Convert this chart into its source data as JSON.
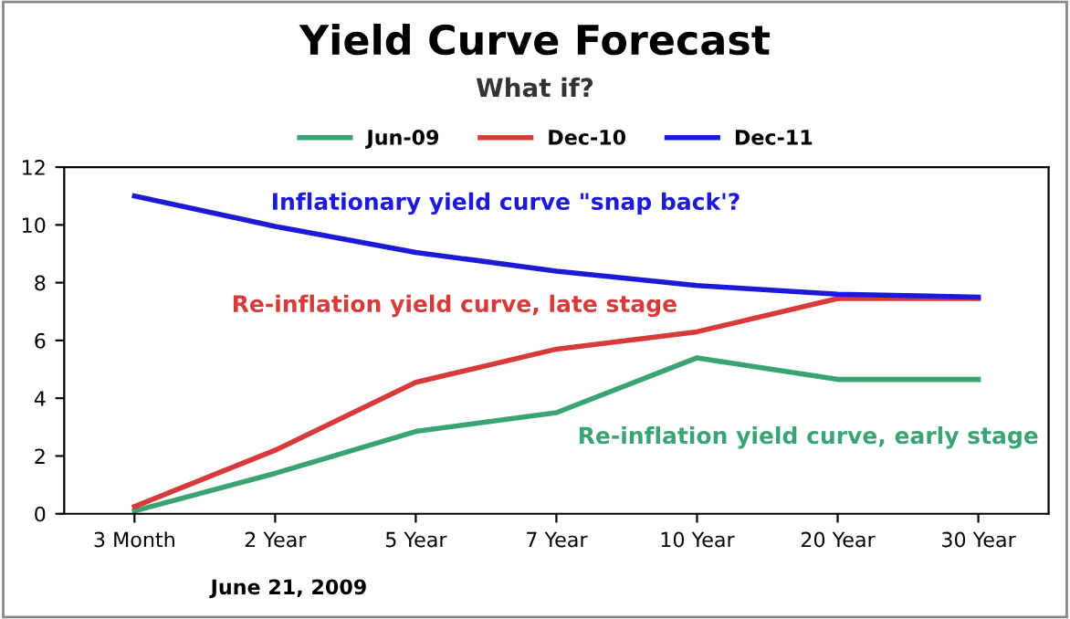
{
  "chart_data": {
    "type": "line",
    "title": "Yield Curve Forecast",
    "subtitle": "What if?",
    "categories": [
      "3 Month",
      "2 Year",
      "5 Year",
      "7 Year",
      "10 Year",
      "20 Year",
      "30 Year"
    ],
    "series": [
      {
        "name": "Jun-09",
        "color": "#3aa374",
        "values": [
          0.1,
          1.4,
          2.85,
          3.5,
          5.4,
          4.65,
          4.65
        ]
      },
      {
        "name": "Dec-10",
        "color": "#d83a3a",
        "values": [
          0.25,
          2.2,
          4.55,
          5.7,
          6.3,
          7.45,
          7.45
        ]
      },
      {
        "name": "Dec-11",
        "color": "#1a1ad8",
        "values": [
          11.0,
          9.95,
          9.05,
          8.4,
          7.9,
          7.6,
          7.5
        ]
      }
    ],
    "ylim": [
      0,
      12
    ],
    "yticks": [
      0,
      2,
      4,
      6,
      8,
      10,
      12
    ],
    "grid": false,
    "legend": "top",
    "marker": "none",
    "line_style": "solid",
    "annotations": [
      "Inflationary yield curve \"snap back'?",
      "Re-inflation yield curve, late stage",
      "Re-inflation yield curve, early stage",
      "June 21, 2009"
    ]
  }
}
